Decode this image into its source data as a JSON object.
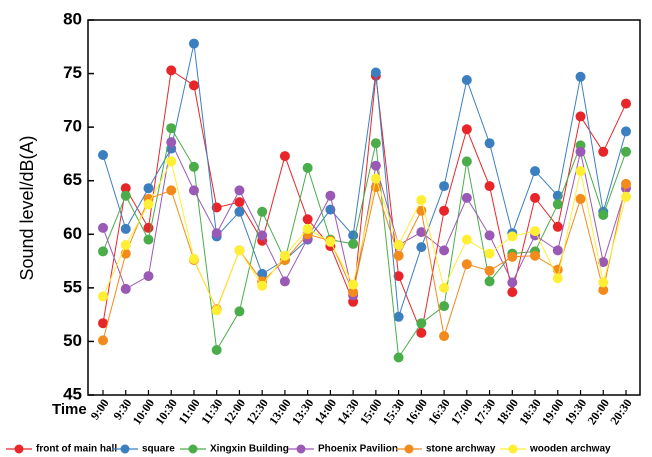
{
  "chart_data": {
    "type": "line",
    "y_label": "Sound level/dB(A)",
    "x_label": "Time",
    "categories": [
      "9:00",
      "9:30",
      "10:00",
      "10:30",
      "11:00",
      "11:30",
      "12:00",
      "12:30",
      "13:00",
      "13:30",
      "14:00",
      "14:30",
      "15:00",
      "15:30",
      "16:00",
      "16:30",
      "17:00",
      "17:30",
      "18:00",
      "18:30",
      "19:00",
      "19:30",
      "20:00",
      "20:30"
    ],
    "ylim": [
      45,
      80
    ],
    "yticks": [
      45,
      50,
      55,
      60,
      65,
      70,
      75,
      80
    ],
    "series": [
      {
        "name": "front of main hall",
        "color": "#e8262a",
        "values": [
          51.7,
          64.3,
          60.6,
          75.3,
          73.9,
          62.5,
          63.0,
          59.4,
          67.3,
          61.4,
          58.9,
          53.7,
          74.8,
          56.1,
          50.8,
          62.2,
          69.8,
          64.5,
          54.6,
          63.4,
          60.7,
          71.0,
          67.7,
          72.2
        ]
      },
      {
        "name": "square",
        "color": "#3c7fc1",
        "values": [
          67.4,
          60.5,
          64.3,
          68.0,
          77.8,
          59.8,
          62.1,
          56.3,
          57.6,
          59.5,
          62.3,
          59.9,
          75.1,
          52.3,
          58.8,
          64.5,
          74.4,
          68.5,
          60.1,
          65.9,
          63.6,
          74.7,
          62.1,
          69.6
        ]
      },
      {
        "name": "Xingxin Building",
        "color": "#4aad4a",
        "values": [
          58.4,
          63.6,
          59.5,
          69.9,
          66.3,
          49.2,
          52.8,
          62.1,
          57.6,
          66.2,
          59.5,
          59.1,
          68.5,
          48.5,
          51.7,
          53.3,
          66.8,
          55.6,
          58.2,
          58.4,
          62.8,
          68.3,
          61.8,
          67.7
        ]
      },
      {
        "name": "Phoenix Pavilion",
        "color": "#9b59b6",
        "values": [
          60.6,
          54.9,
          56.1,
          68.6,
          64.1,
          60.1,
          64.1,
          59.9,
          55.6,
          59.6,
          63.6,
          54.3,
          66.4,
          59.0,
          60.2,
          58.5,
          63.4,
          59.9,
          55.5,
          59.9,
          58.5,
          67.7,
          57.4,
          64.3
        ]
      },
      {
        "name": "stone archway",
        "color": "#f28a1c",
        "values": [
          50.1,
          58.2,
          63.3,
          64.1,
          57.6,
          53.0,
          58.5,
          55.6,
          57.6,
          60.0,
          59.4,
          54.6,
          64.4,
          58.0,
          62.2,
          50.5,
          57.2,
          56.6,
          57.9,
          58.0,
          56.7,
          63.3,
          54.8,
          64.7
        ]
      },
      {
        "name": "wooden archway",
        "color": "#ffee33",
        "values": [
          54.2,
          59.0,
          62.8,
          66.8,
          57.7,
          52.9,
          58.5,
          55.2,
          58.0,
          60.5,
          59.3,
          55.3,
          65.2,
          59.0,
          63.2,
          55.0,
          59.5,
          58.2,
          59.8,
          60.3,
          55.9,
          65.9,
          55.5,
          63.5
        ]
      }
    ]
  }
}
